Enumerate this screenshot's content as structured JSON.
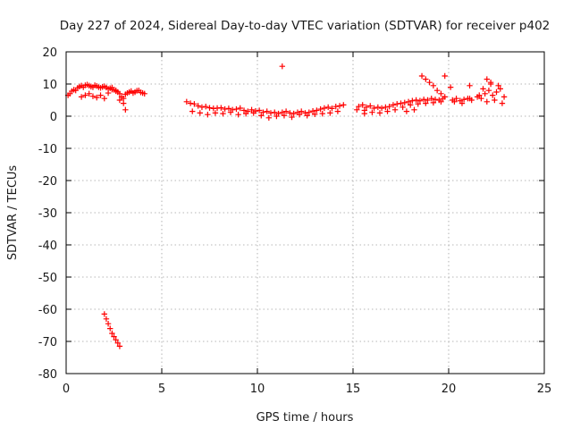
{
  "chart_data": {
    "type": "scatter",
    "title": "Day 227 of 2024, Sidereal Day-to-day VTEC variation (SDTVAR) for receiver p402",
    "xlabel": "GPS time / hours",
    "ylabel": "SDTVAR / TECUs",
    "xlim": [
      0,
      25
    ],
    "ylim": [
      -80,
      20
    ],
    "xticks": [
      0,
      5,
      10,
      15,
      20,
      25
    ],
    "yticks": [
      -80,
      -70,
      -60,
      -50,
      -40,
      -30,
      -20,
      -10,
      0,
      10,
      20
    ],
    "grid": true,
    "marker": "+",
    "color": "#ff0000",
    "series": [
      {
        "name": "SDTVAR",
        "x": [
          0.1,
          0.2,
          0.3,
          0.4,
          0.5,
          0.6,
          0.7,
          0.8,
          0.9,
          1.0,
          1.1,
          1.2,
          1.3,
          1.4,
          1.5,
          1.6,
          1.7,
          1.8,
          1.9,
          2.0,
          2.1,
          2.2,
          2.3,
          2.4,
          2.5,
          2.6,
          2.7,
          2.8,
          2.9,
          3.0,
          3.1,
          3.2,
          3.3,
          3.4,
          3.5,
          3.6,
          3.7,
          3.8,
          3.9,
          4.0,
          4.1,
          0.8,
          1.0,
          1.2,
          1.4,
          1.6,
          1.8,
          2.0,
          2.2,
          2.4,
          2.6,
          2.8,
          3.0,
          3.1,
          2.0,
          2.1,
          2.2,
          2.3,
          2.4,
          2.5,
          2.6,
          2.7,
          2.8,
          6.3,
          6.5,
          6.7,
          6.9,
          7.1,
          7.3,
          7.5,
          7.7,
          7.9,
          8.1,
          8.3,
          8.5,
          8.7,
          8.9,
          9.1,
          9.3,
          9.5,
          9.7,
          9.9,
          10.1,
          10.3,
          10.5,
          10.7,
          10.9,
          11.1,
          11.3,
          11.5,
          11.7,
          11.9,
          12.1,
          12.3,
          12.5,
          12.7,
          12.9,
          13.1,
          13.3,
          13.5,
          13.7,
          13.9,
          14.1,
          14.3,
          14.5,
          6.6,
          7.0,
          7.4,
          7.8,
          8.2,
          8.6,
          9.0,
          9.4,
          9.8,
          10.2,
          10.6,
          11.0,
          11.4,
          11.8,
          12.2,
          12.6,
          13.0,
          13.4,
          13.8,
          14.2,
          11.3,
          15.3,
          15.5,
          15.7,
          15.9,
          16.1,
          16.3,
          16.5,
          16.7,
          16.9,
          17.1,
          17.3,
          17.5,
          17.7,
          17.9,
          18.1,
          18.3,
          18.5,
          18.7,
          18.9,
          19.1,
          19.3,
          19.5,
          19.7,
          15.6,
          16.0,
          16.4,
          16.8,
          17.2,
          17.6,
          18.0,
          18.4,
          18.8,
          19.2,
          19.6,
          18.6,
          18.8,
          19.0,
          19.2,
          19.4,
          19.6,
          19.8,
          20.2,
          20.4,
          20.6,
          20.8,
          21.0,
          21.2,
          21.5,
          21.7,
          21.9,
          22.1,
          22.3,
          22.5,
          22.7,
          22.9,
          20.3,
          20.7,
          21.1,
          21.6,
          22.0,
          22.4,
          22.8,
          21.8,
          22.2,
          22.6,
          19.8,
          20.1,
          21.1,
          22.0,
          22.2,
          15.2,
          15.6,
          17.8,
          18.2
        ],
        "y": [
          6.5,
          7.0,
          7.8,
          8.2,
          8.0,
          8.8,
          9.2,
          9.5,
          9.0,
          9.6,
          9.8,
          9.5,
          9.2,
          9.0,
          9.6,
          9.4,
          9.0,
          8.8,
          9.1,
          9.3,
          8.9,
          8.5,
          8.7,
          8.9,
          8.2,
          8.0,
          7.5,
          7.0,
          6.0,
          5.5,
          6.8,
          7.2,
          7.5,
          7.8,
          7.2,
          7.5,
          7.9,
          8.0,
          7.4,
          7.2,
          7.0,
          6.0,
          6.5,
          7.0,
          6.2,
          5.8,
          6.5,
          5.5,
          7.2,
          8.3,
          7.8,
          5.0,
          4.0,
          2.0,
          -61.5,
          -63.0,
          -64.5,
          -66.0,
          -67.5,
          -68.5,
          -69.5,
          -70.5,
          -71.5,
          4.5,
          4.0,
          3.8,
          3.2,
          2.8,
          3.0,
          2.6,
          2.4,
          2.5,
          2.6,
          2.2,
          2.4,
          2.0,
          2.2,
          2.5,
          1.8,
          1.5,
          2.0,
          1.6,
          1.8,
          1.2,
          1.5,
          1.0,
          1.2,
          0.8,
          1.2,
          1.5,
          1.0,
          0.8,
          1.2,
          1.5,
          1.0,
          1.2,
          1.6,
          1.8,
          2.2,
          2.5,
          2.8,
          2.4,
          3.0,
          3.2,
          3.5,
          1.5,
          1.0,
          0.5,
          1.0,
          0.8,
          1.2,
          0.5,
          0.8,
          1.0,
          0.2,
          -0.5,
          0.0,
          0.2,
          -0.3,
          0.5,
          0.2,
          0.6,
          0.8,
          1.0,
          1.5,
          15.5,
          3.0,
          3.5,
          2.8,
          3.2,
          2.5,
          2.8,
          2.5,
          2.8,
          3.0,
          3.5,
          3.8,
          4.0,
          4.2,
          4.5,
          4.8,
          5.0,
          4.8,
          5.2,
          5.0,
          5.5,
          5.2,
          5.0,
          5.5,
          1.8,
          1.2,
          1.0,
          1.5,
          2.0,
          2.8,
          3.5,
          3.8,
          4.0,
          4.2,
          4.5,
          12.5,
          11.5,
          10.5,
          9.5,
          8.0,
          7.0,
          6.0,
          5.0,
          5.5,
          4.8,
          5.2,
          5.5,
          5.0,
          6.0,
          5.5,
          7.0,
          8.0,
          6.5,
          7.5,
          8.5,
          6.0,
          4.5,
          4.0,
          5.5,
          6.5,
          4.5,
          5.0,
          4.0,
          8.5,
          10.0,
          9.5,
          12.5,
          9.0,
          9.5,
          11.5,
          10.5,
          2.0,
          0.8,
          1.5,
          2.0
        ]
      }
    ]
  }
}
